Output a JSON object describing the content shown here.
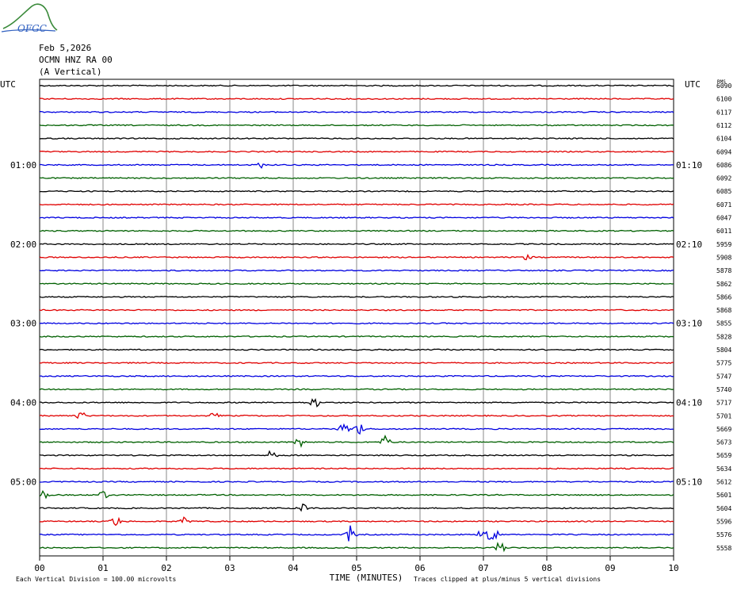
{
  "header": {
    "date": "Feb 5,2026",
    "station": "OCMN HNZ RA 00",
    "component": "(A Vertical)",
    "logo_text": "OFGC"
  },
  "chart_data": {
    "type": "line",
    "title": "",
    "left_label": "UTC",
    "right_label": "UTC",
    "rms_label": "RMS",
    "left_times": [
      "01:00",
      "02:00",
      "03:00",
      "04:00",
      "05:00"
    ],
    "right_times": [
      "01:10",
      "02:10",
      "03:10",
      "04:10",
      "05:10"
    ],
    "x_ticks": [
      "00",
      "01",
      "02",
      "03",
      "04",
      "05",
      "06",
      "07",
      "08",
      "09",
      "10"
    ],
    "xlabel": "TIME (MINUTES)",
    "xlim": [
      0,
      10
    ],
    "grid": true,
    "trace_colors": [
      "#000000",
      "#e00000",
      "#0000e0",
      "#006000"
    ],
    "trace_values": [
      6090,
      6100,
      6117,
      6112,
      6104,
      6094,
      6086,
      6092,
      6085,
      6071,
      6047,
      6011,
      5959,
      5908,
      5878,
      5862,
      5866,
      5868,
      5855,
      5828,
      5804,
      5775,
      5747,
      5740,
      5717,
      5701,
      5669,
      5673,
      5659,
      5634,
      5612,
      5601,
      5604,
      5596,
      5576,
      5558
    ],
    "events": [
      {
        "trace": 6,
        "minute": 3.5,
        "amp": 4
      },
      {
        "trace": 13,
        "minute": 7.7,
        "amp": 4
      },
      {
        "trace": 24,
        "minute": 4.35,
        "amp": 8
      },
      {
        "trace": 25,
        "minute": 0.65,
        "amp": 6
      },
      {
        "trace": 25,
        "minute": 2.75,
        "amp": 5
      },
      {
        "trace": 26,
        "minute": 4.8,
        "amp": 8
      },
      {
        "trace": 26,
        "minute": 5.05,
        "amp": 10
      },
      {
        "trace": 27,
        "minute": 4.1,
        "amp": 7
      },
      {
        "trace": 27,
        "minute": 5.45,
        "amp": 8
      },
      {
        "trace": 28,
        "minute": 3.65,
        "amp": 6
      },
      {
        "trace": 31,
        "minute": 0.05,
        "amp": 8
      },
      {
        "trace": 31,
        "minute": 1.0,
        "amp": 6
      },
      {
        "trace": 32,
        "minute": 4.15,
        "amp": 6
      },
      {
        "trace": 33,
        "minute": 1.2,
        "amp": 7
      },
      {
        "trace": 33,
        "minute": 2.3,
        "amp": 7
      },
      {
        "trace": 34,
        "minute": 4.9,
        "amp": 12
      },
      {
        "trace": 34,
        "minute": 7.0,
        "amp": 14
      },
      {
        "trace": 34,
        "minute": 7.15,
        "amp": 12
      },
      {
        "trace": 35,
        "minute": 7.25,
        "amp": 9
      }
    ],
    "footer_left": "Each Vertical Division =  100.00 microvolts",
    "footer_right": "Traces clipped at plus/minus 5 vertical divisions"
  }
}
